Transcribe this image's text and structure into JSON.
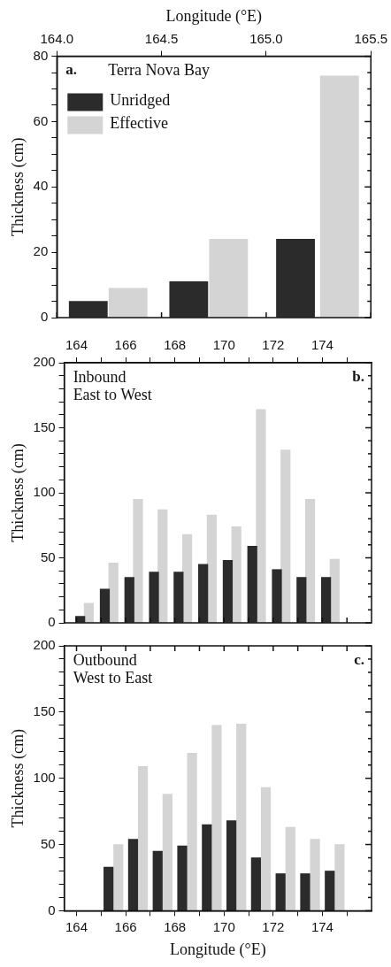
{
  "chart_data": [
    {
      "type": "bar",
      "title": "Terra Nova Bay",
      "annotations": [
        "a."
      ],
      "ylabel": "Thickness (cm)",
      "xlabel": "Longitude (°E)",
      "legend": "top left",
      "grid": false,
      "series": [
        {
          "name": "Unridged",
          "color": "#2b2b2b",
          "x": [
            164.15,
            164.63,
            165.14
          ],
          "values": [
            5,
            11,
            24
          ]
        },
        {
          "name": "Effective",
          "color": "#d4d4d4",
          "x": [
            164.34,
            164.82,
            165.35
          ],
          "values": [
            9,
            24,
            74
          ]
        }
      ],
      "xlim": [
        164,
        165.5
      ],
      "xticks": [
        {
          "value": 164,
          "label": "164.0"
        },
        {
          "value": 164.5,
          "label": "164.5"
        },
        {
          "value": 165,
          "label": "165.0"
        },
        {
          "value": 165.5,
          "label": "165.5"
        }
      ],
      "ylim": [
        0,
        80
      ],
      "yticks": [
        0,
        {
          "value": 5,
          "label": null
        },
        {
          "value": 10,
          "label": null
        },
        {
          "value": 15,
          "label": null
        },
        20,
        {
          "value": 25,
          "label": null
        },
        {
          "value": 30,
          "label": null
        },
        {
          "value": 35,
          "label": null
        },
        40,
        {
          "value": 45,
          "label": null
        },
        {
          "value": 50,
          "label": null
        },
        {
          "value": 55,
          "label": null
        },
        60,
        {
          "value": 65,
          "label": null
        },
        {
          "value": 70,
          "label": null
        },
        {
          "value": 75,
          "label": null
        },
        80
      ]
    },
    {
      "type": "bar",
      "title": "Inbound",
      "subtitle": "East to West",
      "annotations": [
        "b."
      ],
      "ylabel": "Thickness (cm)",
      "grid": false,
      "series": [
        {
          "color": "#2b2b2b",
          "x": [
            164.15,
            165.15,
            166.15,
            167.15,
            168.15,
            169.15,
            170.15,
            171.15,
            172.15,
            173.15,
            174.15
          ],
          "values": [
            5,
            26,
            35,
            39,
            39,
            45,
            48,
            59,
            41,
            35,
            35
          ]
        },
        {
          "color": "#d4d4d4",
          "x": [
            164.5,
            165.5,
            166.5,
            167.5,
            168.5,
            169.5,
            170.5,
            171.5,
            172.5,
            173.5,
            174.5
          ],
          "values": [
            15,
            46,
            95,
            87,
            68,
            83,
            74,
            164,
            133,
            95,
            49
          ]
        }
      ],
      "xlim": [
        163.5,
        176
      ],
      "xticks": [
        164,
        {
          "value": 165,
          "label": null
        },
        166,
        {
          "value": 167,
          "label": null
        },
        168,
        {
          "value": 169,
          "label": null
        },
        170,
        {
          "value": 171,
          "label": null
        },
        172,
        {
          "value": 173,
          "label": null
        },
        174,
        {
          "value": 175,
          "label": null
        }
      ],
      "ylim": [
        0,
        200
      ],
      "yticks": [
        0,
        {
          "value": 10,
          "label": null
        },
        {
          "value": 20,
          "label": null
        },
        {
          "value": 30,
          "label": null
        },
        {
          "value": 40,
          "label": null
        },
        50,
        {
          "value": 60,
          "label": null
        },
        {
          "value": 70,
          "label": null
        },
        {
          "value": 80,
          "label": null
        },
        {
          "value": 90,
          "label": null
        },
        100,
        {
          "value": 110,
          "label": null
        },
        {
          "value": 120,
          "label": null
        },
        {
          "value": 130,
          "label": null
        },
        {
          "value": 140,
          "label": null
        },
        150,
        {
          "value": 160,
          "label": null
        },
        {
          "value": 170,
          "label": null
        },
        {
          "value": 180,
          "label": null
        },
        {
          "value": 190,
          "label": null
        },
        200
      ]
    },
    {
      "type": "bar",
      "title": "Outbound",
      "subtitle": "West to East",
      "annotations": [
        "c."
      ],
      "ylabel": "Thickness (cm)",
      "xlabel": "Longitude (°E)",
      "grid": false,
      "series": [
        {
          "color": "#2b2b2b",
          "x": [
            165.3,
            166.3,
            167.3,
            168.3,
            169.3,
            170.3,
            171.3,
            172.3,
            173.3,
            174.3
          ],
          "values": [
            33,
            54,
            45,
            49,
            65,
            68,
            40,
            28,
            28,
            30
          ]
        },
        {
          "color": "#d4d4d4",
          "x": [
            165.7,
            166.7,
            167.7,
            168.7,
            169.7,
            170.7,
            171.7,
            172.7,
            173.7,
            174.7
          ],
          "values": [
            50,
            109,
            88,
            119,
            140,
            141,
            93,
            63,
            54,
            50
          ]
        }
      ],
      "xlim": [
        163.5,
        176
      ],
      "xticks": [
        164,
        {
          "value": 165,
          "label": null
        },
        166,
        {
          "value": 167,
          "label": null
        },
        168,
        {
          "value": 169,
          "label": null
        },
        170,
        {
          "value": 171,
          "label": null
        },
        172,
        {
          "value": 173,
          "label": null
        },
        174,
        {
          "value": 175,
          "label": null
        }
      ],
      "ylim": [
        0,
        200
      ],
      "yticks": [
        0,
        {
          "value": 10,
          "label": null
        },
        {
          "value": 20,
          "label": null
        },
        {
          "value": 30,
          "label": null
        },
        {
          "value": 40,
          "label": null
        },
        50,
        {
          "value": 60,
          "label": null
        },
        {
          "value": 70,
          "label": null
        },
        {
          "value": 80,
          "label": null
        },
        {
          "value": 90,
          "label": null
        },
        100,
        {
          "value": 110,
          "label": null
        },
        {
          "value": 120,
          "label": null
        },
        {
          "value": 130,
          "label": null
        },
        {
          "value": 140,
          "label": null
        },
        150,
        {
          "value": 160,
          "label": null
        },
        {
          "value": 170,
          "label": null
        },
        {
          "value": 180,
          "label": null
        },
        {
          "value": 190,
          "label": null
        },
        200
      ]
    }
  ]
}
